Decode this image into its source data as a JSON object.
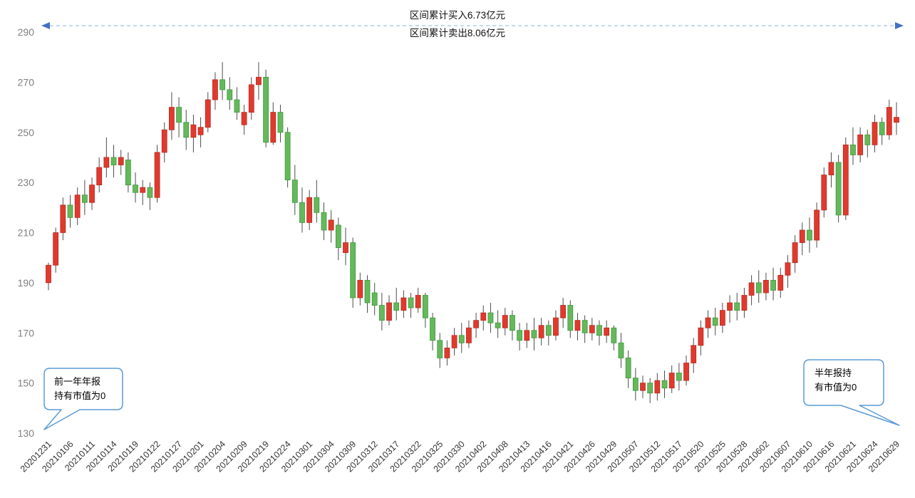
{
  "chart_data": {
    "type": "candlestick",
    "title": "",
    "xlabel": "",
    "ylabel": "",
    "ylim": [
      130,
      290
    ],
    "yticks": [
      130,
      150,
      170,
      190,
      210,
      230,
      250,
      270,
      290
    ],
    "grid": false,
    "x_label_every": 3,
    "xticks": [
      "20201231",
      "20210106",
      "20210111",
      "20210114",
      "20210119",
      "20210122",
      "20210127",
      "20210201",
      "20210204",
      "20210209",
      "20210219",
      "20210224",
      "20210301",
      "20210304",
      "20210309",
      "20210312",
      "20210317",
      "20210322",
      "20210325",
      "20210330",
      "20210402",
      "20210408",
      "20210413",
      "20210416",
      "20210421",
      "20210426",
      "20210429",
      "20210507",
      "20210512",
      "20210517",
      "20210520",
      "20210525",
      "20210528",
      "20210602",
      "20210607",
      "20210610",
      "20210616",
      "20210621",
      "20210624",
      "20210629"
    ],
    "colors": {
      "up": "#e03a2f",
      "up_border": "#b92b20",
      "down": "#66b85c",
      "down_border": "#3c9a3c",
      "wick": "#4d4d4d",
      "axis_text": "#7f7f7f",
      "xaxis_text": "#333333",
      "range_line": "#9dc3e6",
      "arrow": "#4472c4",
      "callout_border": "#5b9bd5"
    },
    "annotations": {
      "range_buy": "区间累计买入6.73亿元",
      "range_sell": "区间累计卖出8.06亿元",
      "callout_left": {
        "line1": "前一年年报",
        "line2": "持有市值为0"
      },
      "callout_right": {
        "line1": "半年报持",
        "line2": "有市值为0"
      }
    },
    "candles": {
      "columns": [
        "date",
        "open",
        "high",
        "low",
        "close"
      ],
      "rows": [
        [
          "20201231",
          190,
          198,
          187,
          197
        ],
        [
          "20210104",
          197,
          212,
          194,
          210
        ],
        [
          "20210105",
          210,
          224,
          207,
          221
        ],
        [
          "20210106",
          221,
          225,
          212,
          216
        ],
        [
          "20210107",
          216,
          228,
          213,
          225
        ],
        [
          "20210108",
          225,
          231,
          217,
          222
        ],
        [
          "20210111",
          222,
          232,
          219,
          229
        ],
        [
          "20210112",
          229,
          240,
          226,
          236
        ],
        [
          "20210113",
          236,
          248,
          232,
          240
        ],
        [
          "20210114",
          240,
          245,
          232,
          237
        ],
        [
          "20210115",
          237,
          243,
          233,
          240
        ],
        [
          "20210118",
          239,
          242,
          226,
          229
        ],
        [
          "20210119",
          229,
          234,
          222,
          226
        ],
        [
          "20210120",
          226,
          231,
          221,
          228
        ],
        [
          "20210121",
          228,
          230,
          219,
          224
        ],
        [
          "20210122",
          224,
          245,
          222,
          242
        ],
        [
          "20210125",
          242,
          254,
          238,
          251
        ],
        [
          "20210126",
          251,
          266,
          247,
          260
        ],
        [
          "20210127",
          260,
          264,
          248,
          254
        ],
        [
          "20210128",
          254,
          259,
          243,
          248
        ],
        [
          "20210129",
          248,
          257,
          242,
          253
        ],
        [
          "20210201",
          249,
          256,
          244,
          252
        ],
        [
          "20210202",
          252,
          266,
          250,
          263
        ],
        [
          "20210203",
          263,
          274,
          259,
          271
        ],
        [
          "20210204",
          271,
          278,
          263,
          267
        ],
        [
          "20210205",
          267,
          272,
          259,
          263
        ],
        [
          "20210208",
          263,
          268,
          255,
          258
        ],
        [
          "20210209",
          253,
          261,
          249,
          258
        ],
        [
          "20210210",
          258,
          272,
          255,
          269
        ],
        [
          "20210218",
          269,
          278,
          263,
          272
        ],
        [
          "20210219",
          272,
          275,
          244,
          246
        ],
        [
          "20210222",
          246,
          262,
          245,
          258
        ],
        [
          "20210223",
          258,
          261,
          246,
          250
        ],
        [
          "20210224",
          250,
          252,
          228,
          231
        ],
        [
          "20210225",
          231,
          237,
          217,
          222
        ],
        [
          "20210226",
          222,
          228,
          210,
          214
        ],
        [
          "20210301",
          214,
          227,
          211,
          224
        ],
        [
          "20210302",
          224,
          231,
          214,
          218
        ],
        [
          "20210303",
          218,
          222,
          207,
          211
        ],
        [
          "20210304",
          211,
          219,
          206,
          215
        ],
        [
          "20210305",
          213,
          216,
          199,
          204
        ],
        [
          "20210308",
          202,
          212,
          197,
          206
        ],
        [
          "20210309",
          206,
          208,
          180,
          184
        ],
        [
          "20210310",
          184,
          194,
          181,
          191
        ],
        [
          "20210311",
          191,
          193,
          178,
          182
        ],
        [
          "20210312",
          186,
          190,
          177,
          181
        ],
        [
          "20210315",
          181,
          186,
          171,
          175
        ],
        [
          "20210316",
          175,
          185,
          173,
          182
        ],
        [
          "20210317",
          182,
          188,
          175,
          179
        ],
        [
          "20210318",
          179,
          187,
          176,
          184
        ],
        [
          "20210319",
          184,
          186,
          176,
          180
        ],
        [
          "20210322",
          180,
          188,
          178,
          185
        ],
        [
          "20210323",
          185,
          186,
          172,
          176
        ],
        [
          "20210324",
          176,
          178,
          163,
          167
        ],
        [
          "20210325",
          167,
          170,
          156,
          160
        ],
        [
          "20210326",
          160,
          167,
          157,
          164
        ],
        [
          "20210329",
          164,
          172,
          161,
          169
        ],
        [
          "20210330",
          169,
          174,
          162,
          166
        ],
        [
          "20210331",
          166,
          175,
          164,
          172
        ],
        [
          "20210401",
          172,
          178,
          168,
          175
        ],
        [
          "20210402",
          175,
          181,
          171,
          178
        ],
        [
          "20210406",
          178,
          182,
          170,
          174
        ],
        [
          "20210407",
          174,
          179,
          168,
          172
        ],
        [
          "20210408",
          172,
          180,
          169,
          177
        ],
        [
          "20210409",
          177,
          179,
          167,
          171
        ],
        [
          "20210412",
          171,
          174,
          163,
          167
        ],
        [
          "20210413",
          167,
          174,
          164,
          171
        ],
        [
          "20210414",
          171,
          176,
          163,
          168
        ],
        [
          "20210415",
          168,
          176,
          165,
          173
        ],
        [
          "20210416",
          173,
          175,
          165,
          169
        ],
        [
          "20210419",
          169,
          179,
          167,
          176
        ],
        [
          "20210420",
          176,
          184,
          172,
          181
        ],
        [
          "20210421",
          181,
          183,
          168,
          171
        ],
        [
          "20210422",
          171,
          178,
          167,
          175
        ],
        [
          "20210423",
          175,
          177,
          166,
          170
        ],
        [
          "20210426",
          170,
          176,
          167,
          173
        ],
        [
          "20210427",
          173,
          175,
          165,
          169
        ],
        [
          "20210428",
          169,
          175,
          166,
          172
        ],
        [
          "20210429",
          172,
          173,
          163,
          166
        ],
        [
          "20210430",
          166,
          170,
          156,
          160
        ],
        [
          "20210506",
          160,
          163,
          148,
          152
        ],
        [
          "20210507",
          152,
          156,
          143,
          147
        ],
        [
          "20210510",
          147,
          153,
          144,
          150
        ],
        [
          "20210511",
          150,
          152,
          142,
          146
        ],
        [
          "20210512",
          146,
          154,
          143,
          151
        ],
        [
          "20210513",
          151,
          155,
          144,
          148
        ],
        [
          "20210514",
          148,
          157,
          146,
          154
        ],
        [
          "20210517",
          154,
          158,
          147,
          151
        ],
        [
          "20210518",
          151,
          161,
          149,
          158
        ],
        [
          "20210519",
          158,
          168,
          154,
          165
        ],
        [
          "20210520",
          165,
          175,
          161,
          172
        ],
        [
          "20210521",
          172,
          179,
          168,
          176
        ],
        [
          "20210524",
          176,
          180,
          169,
          173
        ],
        [
          "20210525",
          173,
          182,
          170,
          179
        ],
        [
          "20210526",
          179,
          185,
          174,
          182
        ],
        [
          "20210527",
          182,
          186,
          175,
          179
        ],
        [
          "20210528",
          179,
          188,
          176,
          185
        ],
        [
          "20210531",
          185,
          193,
          181,
          190
        ],
        [
          "20210601",
          190,
          195,
          182,
          186
        ],
        [
          "20210602",
          186,
          194,
          183,
          191
        ],
        [
          "20210603",
          191,
          196,
          183,
          187
        ],
        [
          "20210604",
          187,
          196,
          184,
          193
        ],
        [
          "20210607",
          193,
          201,
          188,
          198
        ],
        [
          "20210608",
          198,
          209,
          194,
          206
        ],
        [
          "20210609",
          206,
          214,
          201,
          211
        ],
        [
          "20210610",
          211,
          216,
          202,
          207
        ],
        [
          "20210611",
          207,
          222,
          204,
          219
        ],
        [
          "20210615",
          219,
          236,
          216,
          233
        ],
        [
          "20210616",
          233,
          242,
          228,
          238
        ],
        [
          "20210617",
          238,
          241,
          214,
          217
        ],
        [
          "20210618",
          217,
          248,
          215,
          245
        ],
        [
          "20210621",
          245,
          252,
          237,
          241
        ],
        [
          "20210622",
          241,
          252,
          238,
          249
        ],
        [
          "20210623",
          249,
          251,
          240,
          245
        ],
        [
          "20210624",
          245,
          257,
          242,
          254
        ],
        [
          "20210625",
          254,
          256,
          245,
          249
        ],
        [
          "20210628",
          249,
          263,
          247,
          260
        ],
        [
          "20210629",
          254,
          262,
          249,
          256
        ]
      ]
    }
  }
}
